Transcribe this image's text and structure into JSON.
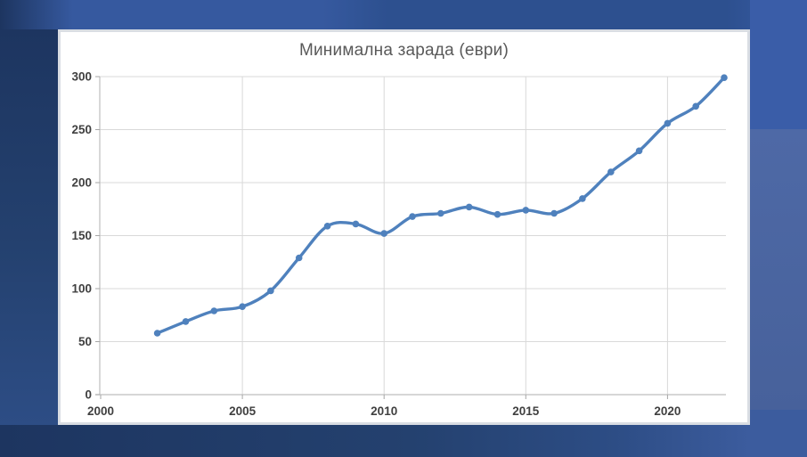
{
  "chart_data": {
    "type": "line",
    "title": "Минимална зарада (еври)",
    "xlabel": "",
    "ylabel": "",
    "x": [
      2002,
      2003,
      2004,
      2005,
      2006,
      2007,
      2008,
      2009,
      2010,
      2011,
      2012,
      2013,
      2014,
      2015,
      2016,
      2017,
      2018,
      2019,
      2020,
      2021,
      2022
    ],
    "series": [
      {
        "name": "Минимална зарада (еври)",
        "values": [
          58,
          69,
          79,
          83,
          98,
          129,
          159,
          161,
          152,
          168,
          171,
          177,
          170,
          174,
          171,
          185,
          210,
          230,
          256,
          272,
          299
        ]
      }
    ],
    "xticks": [
      2000,
      2005,
      2010,
      2015,
      2020
    ],
    "yticks": [
      0,
      50,
      100,
      150,
      200,
      250,
      300
    ],
    "xlim": [
      2000,
      2023
    ],
    "ylim": [
      0,
      300
    ],
    "grid": true,
    "legend": false,
    "line_style": "smoothed",
    "marker": "circle"
  },
  "palette": {
    "line-color": "#4f81bd",
    "grid-color": "#d9d9d9",
    "axis-color": "#bfbfbf",
    "tick-color": "#a6a6a6",
    "tick-label-color": "#404040",
    "title-color": "#595959",
    "navy-dark": "#1d3560",
    "navy-mid": "#24416f",
    "navy-light": "#2d4d85",
    "blue-bright": "#36599f",
    "blue-band": "#2d508f",
    "blue-right-top": "#3a5da8",
    "blue-right-mid": "#4e69a6",
    "blue-right-mid2": "#47619b",
    "blue-corner": "#3c5c9e"
  }
}
